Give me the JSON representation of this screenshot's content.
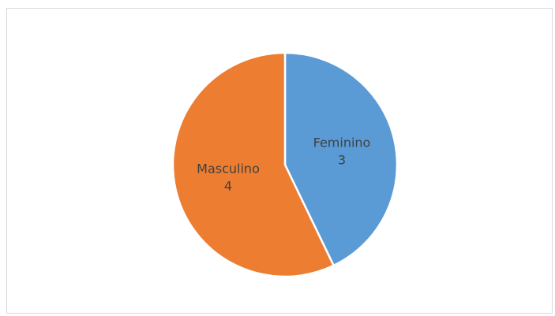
{
  "chart_data": {
    "type": "pie",
    "title": "",
    "categories": [
      "Feminino",
      "Masculino"
    ],
    "values": [
      3,
      4
    ],
    "colors": [
      "#5B9BD5",
      "#ED7D31"
    ],
    "start_angle_deg": 0,
    "direction": "clockwise",
    "data_labels": "inside",
    "legend": "none"
  }
}
